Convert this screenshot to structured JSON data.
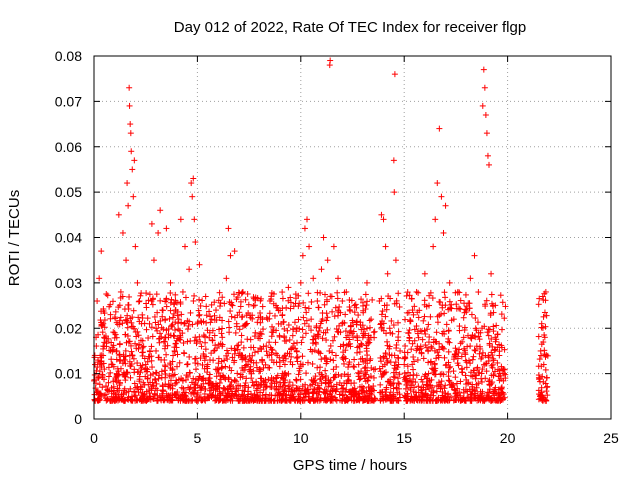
{
  "chart_data": {
    "type": "scatter",
    "title": "Day 012 of 2022, Rate Of TEC Index for receiver flgp",
    "xlabel": "GPS time / hours",
    "ylabel": "ROTI / TECUs",
    "xlim": [
      0,
      25
    ],
    "ylim": [
      0,
      0.08
    ],
    "xticks": [
      0,
      5,
      10,
      15,
      20,
      25
    ],
    "yticks": [
      0,
      0.01,
      0.02,
      0.03,
      0.04,
      0.05,
      0.06,
      0.07,
      0.08
    ],
    "xtick_labels": [
      "0",
      "5",
      "10",
      "15",
      "20",
      "25"
    ],
    "ytick_labels": [
      "0",
      "0.01",
      "0.02",
      "0.03",
      "0.04",
      "0.05",
      "0.06",
      "0.07",
      "0.08"
    ],
    "grid": true,
    "marker": "+",
    "color": "#ff0000",
    "series": [
      {
        "name": "ROTI",
        "points": [
          [
            0.05,
            0.012
          ],
          [
            0.1,
            0.018
          ],
          [
            0.15,
            0.026
          ],
          [
            0.2,
            0.009
          ],
          [
            0.25,
            0.031
          ],
          [
            0.3,
            0.014
          ],
          [
            0.35,
            0.037
          ],
          [
            0.4,
            0.007
          ],
          [
            0.45,
            0.021
          ],
          [
            0.5,
            0.011
          ],
          [
            0.6,
            0.016
          ],
          [
            0.7,
            0.008
          ],
          [
            0.8,
            0.023
          ],
          [
            0.9,
            0.012
          ],
          [
            1.0,
            0.019
          ],
          [
            1.1,
            0.01
          ],
          [
            1.2,
            0.045
          ],
          [
            1.3,
            0.028
          ],
          [
            1.4,
            0.041
          ],
          [
            1.5,
            0.013
          ],
          [
            1.55,
            0.035
          ],
          [
            1.6,
            0.052
          ],
          [
            1.65,
            0.047
          ],
          [
            1.7,
            0.073
          ],
          [
            1.72,
            0.069
          ],
          [
            1.75,
            0.065
          ],
          [
            1.78,
            0.063
          ],
          [
            1.8,
            0.059
          ],
          [
            1.85,
            0.055
          ],
          [
            1.9,
            0.049
          ],
          [
            1.95,
            0.057
          ],
          [
            2.0,
            0.038
          ],
          [
            2.1,
            0.03
          ],
          [
            2.2,
            0.026
          ],
          [
            2.3,
            0.021
          ],
          [
            2.4,
            0.016
          ],
          [
            2.5,
            0.012
          ],
          [
            2.6,
            0.009
          ],
          [
            2.7,
            0.015
          ],
          [
            2.8,
            0.043
          ],
          [
            2.9,
            0.035
          ],
          [
            3.0,
            0.02
          ],
          [
            3.1,
            0.041
          ],
          [
            3.2,
            0.046
          ],
          [
            3.3,
            0.024
          ],
          [
            3.4,
            0.013
          ],
          [
            3.5,
            0.042
          ],
          [
            3.6,
            0.018
          ],
          [
            3.7,
            0.03
          ],
          [
            3.8,
            0.011
          ],
          [
            3.9,
            0.015
          ],
          [
            4.0,
            0.008
          ],
          [
            4.1,
            0.022
          ],
          [
            4.2,
            0.044
          ],
          [
            4.3,
            0.028
          ],
          [
            4.4,
            0.038
          ],
          [
            4.5,
            0.012
          ],
          [
            4.6,
            0.033
          ],
          [
            4.7,
            0.052
          ],
          [
            4.75,
            0.049
          ],
          [
            4.8,
            0.053
          ],
          [
            4.85,
            0.044
          ],
          [
            4.9,
            0.039
          ],
          [
            5.0,
            0.021
          ],
          [
            5.1,
            0.034
          ],
          [
            5.2,
            0.016
          ],
          [
            5.3,
            0.009
          ],
          [
            5.4,
            0.027
          ],
          [
            5.5,
            0.012
          ],
          [
            5.6,
            0.019
          ],
          [
            5.7,
            0.007
          ],
          [
            5.8,
            0.015
          ],
          [
            5.9,
            0.024
          ],
          [
            6.0,
            0.011
          ],
          [
            6.2,
            0.018
          ],
          [
            6.4,
            0.031
          ],
          [
            6.5,
            0.042
          ],
          [
            6.6,
            0.036
          ],
          [
            6.7,
            0.025
          ],
          [
            6.8,
            0.037
          ],
          [
            6.9,
            0.021
          ],
          [
            7.0,
            0.014
          ],
          [
            7.2,
            0.028
          ],
          [
            7.4,
            0.012
          ],
          [
            7.6,
            0.009
          ],
          [
            7.8,
            0.019
          ],
          [
            8.0,
            0.011
          ],
          [
            8.2,
            0.016
          ],
          [
            8.4,
            0.022
          ],
          [
            8.6,
            0.013
          ],
          [
            8.8,
            0.025
          ],
          [
            9.0,
            0.008
          ],
          [
            9.2,
            0.018
          ],
          [
            9.4,
            0.029
          ],
          [
            9.6,
            0.012
          ],
          [
            9.8,
            0.015
          ],
          [
            10.0,
            0.03
          ],
          [
            10.1,
            0.036
          ],
          [
            10.2,
            0.042
          ],
          [
            10.3,
            0.044
          ],
          [
            10.4,
            0.038
          ],
          [
            10.5,
            0.022
          ],
          [
            10.6,
            0.031
          ],
          [
            10.8,
            0.026
          ],
          [
            11.0,
            0.033
          ],
          [
            11.1,
            0.04
          ],
          [
            11.2,
            0.019
          ],
          [
            11.3,
            0.035
          ],
          [
            11.4,
            0.078
          ],
          [
            11.42,
            0.079
          ],
          [
            11.5,
            0.027
          ],
          [
            11.6,
            0.038
          ],
          [
            11.7,
            0.014
          ],
          [
            11.8,
            0.031
          ],
          [
            12.0,
            0.021
          ],
          [
            12.2,
            0.028
          ],
          [
            12.4,
            0.016
          ],
          [
            12.6,
            0.025
          ],
          [
            12.8,
            0.012
          ],
          [
            13.0,
            0.018
          ],
          [
            13.2,
            0.03
          ],
          [
            13.4,
            0.022
          ],
          [
            13.6,
            0.011
          ],
          [
            13.8,
            0.026
          ],
          [
            13.9,
            0.045
          ],
          [
            14.0,
            0.044
          ],
          [
            14.1,
            0.038
          ],
          [
            14.2,
            0.032
          ],
          [
            14.3,
            0.02
          ],
          [
            14.4,
            0.014
          ],
          [
            14.5,
            0.057
          ],
          [
            14.52,
            0.05
          ],
          [
            14.55,
            0.076
          ],
          [
            14.6,
            0.035
          ],
          [
            14.7,
            0.009
          ],
          [
            14.8,
            0.015
          ],
          [
            15.0,
            0.012
          ],
          [
            15.2,
            0.019
          ],
          [
            15.4,
            0.024
          ],
          [
            15.6,
            0.028
          ],
          [
            15.8,
            0.016
          ],
          [
            16.0,
            0.032
          ],
          [
            16.2,
            0.025
          ],
          [
            16.4,
            0.038
          ],
          [
            16.5,
            0.044
          ],
          [
            16.6,
            0.052
          ],
          [
            16.7,
            0.064
          ],
          [
            16.8,
            0.049
          ],
          [
            16.9,
            0.041
          ],
          [
            17.0,
            0.047
          ],
          [
            17.2,
            0.03
          ],
          [
            17.4,
            0.022
          ],
          [
            17.6,
            0.028
          ],
          [
            17.8,
            0.017
          ],
          [
            18.0,
            0.024
          ],
          [
            18.2,
            0.031
          ],
          [
            18.4,
            0.036
          ],
          [
            18.6,
            0.019
          ],
          [
            18.8,
            0.069
          ],
          [
            18.85,
            0.077
          ],
          [
            18.9,
            0.073
          ],
          [
            18.95,
            0.067
          ],
          [
            19.0,
            0.063
          ],
          [
            19.05,
            0.058
          ],
          [
            19.1,
            0.056
          ],
          [
            19.2,
            0.032
          ],
          [
            19.3,
            0.025
          ],
          [
            19.4,
            0.018
          ],
          [
            19.6,
            0.014
          ],
          [
            19.8,
            0.011
          ],
          [
            21.55,
            0.009
          ],
          [
            21.6,
            0.015
          ],
          [
            21.65,
            0.021
          ],
          [
            21.7,
            0.027
          ],
          [
            21.75,
            0.012
          ],
          [
            21.8,
            0.018
          ],
          [
            21.85,
            0.028
          ],
          [
            21.9,
            0.007
          ]
        ]
      }
    ]
  }
}
